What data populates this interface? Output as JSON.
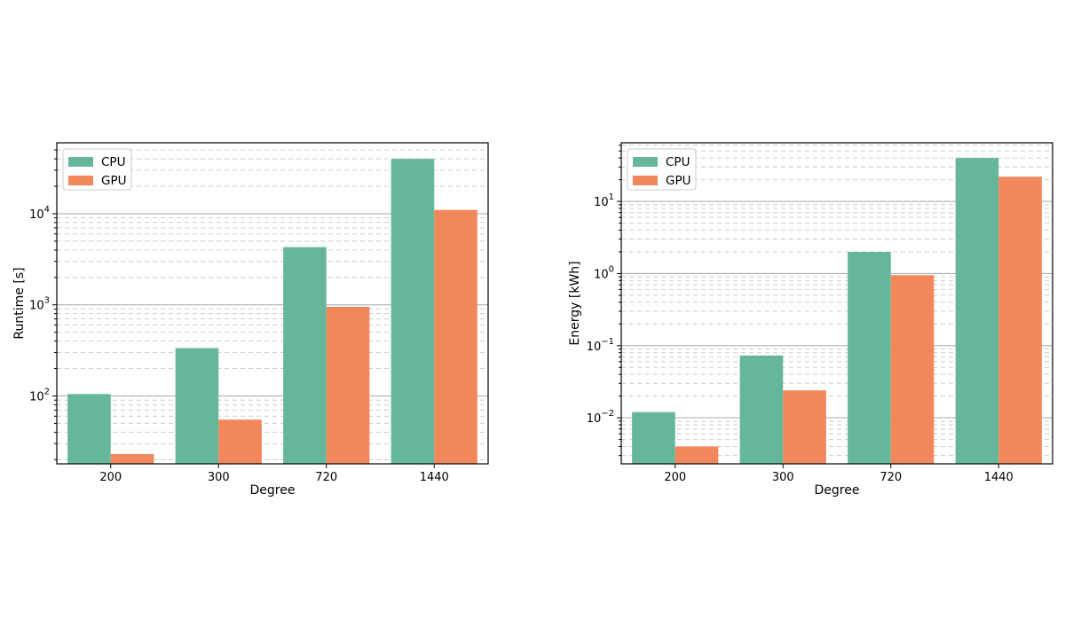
{
  "chart_data": [
    {
      "type": "bar",
      "xlabel": "Degree",
      "ylabel": "Runtime [s]",
      "yscale": "log",
      "ylim": [
        18,
        60000
      ],
      "yticks": [
        {
          "value": 100,
          "base": "10",
          "exp": "2"
        },
        {
          "value": 1000,
          "base": "10",
          "exp": "3"
        },
        {
          "value": 10000,
          "base": "10",
          "exp": "4"
        }
      ],
      "grid": {
        "major": true,
        "minor": true
      },
      "legend_position": "upper-left",
      "categories": [
        "200",
        "300",
        "720",
        "1440"
      ],
      "series": [
        {
          "name": "CPU",
          "color": "#66b69b",
          "values": [
            105,
            335,
            4300,
            40000
          ]
        },
        {
          "name": "GPU",
          "color": "#f2875b",
          "values": [
            23,
            55,
            950,
            11000
          ]
        }
      ]
    },
    {
      "type": "bar",
      "xlabel": "Degree",
      "ylabel": "Energy [kWh]",
      "yscale": "log",
      "ylim": [
        0.0023,
        65
      ],
      "yticks": [
        {
          "value": 0.01,
          "base": "10",
          "exp": "−2"
        },
        {
          "value": 0.1,
          "base": "10",
          "exp": "−1"
        },
        {
          "value": 1,
          "base": "10",
          "exp": "0"
        },
        {
          "value": 10,
          "base": "10",
          "exp": "1"
        }
      ],
      "grid": {
        "major": true,
        "minor": true
      },
      "legend_position": "upper-left",
      "categories": [
        "200",
        "300",
        "720",
        "1440"
      ],
      "series": [
        {
          "name": "CPU",
          "color": "#66b69b",
          "values": [
            0.012,
            0.073,
            2.0,
            40
          ]
        },
        {
          "name": "GPU",
          "color": "#f2875b",
          "values": [
            0.004,
            0.024,
            0.95,
            22
          ]
        }
      ]
    }
  ]
}
